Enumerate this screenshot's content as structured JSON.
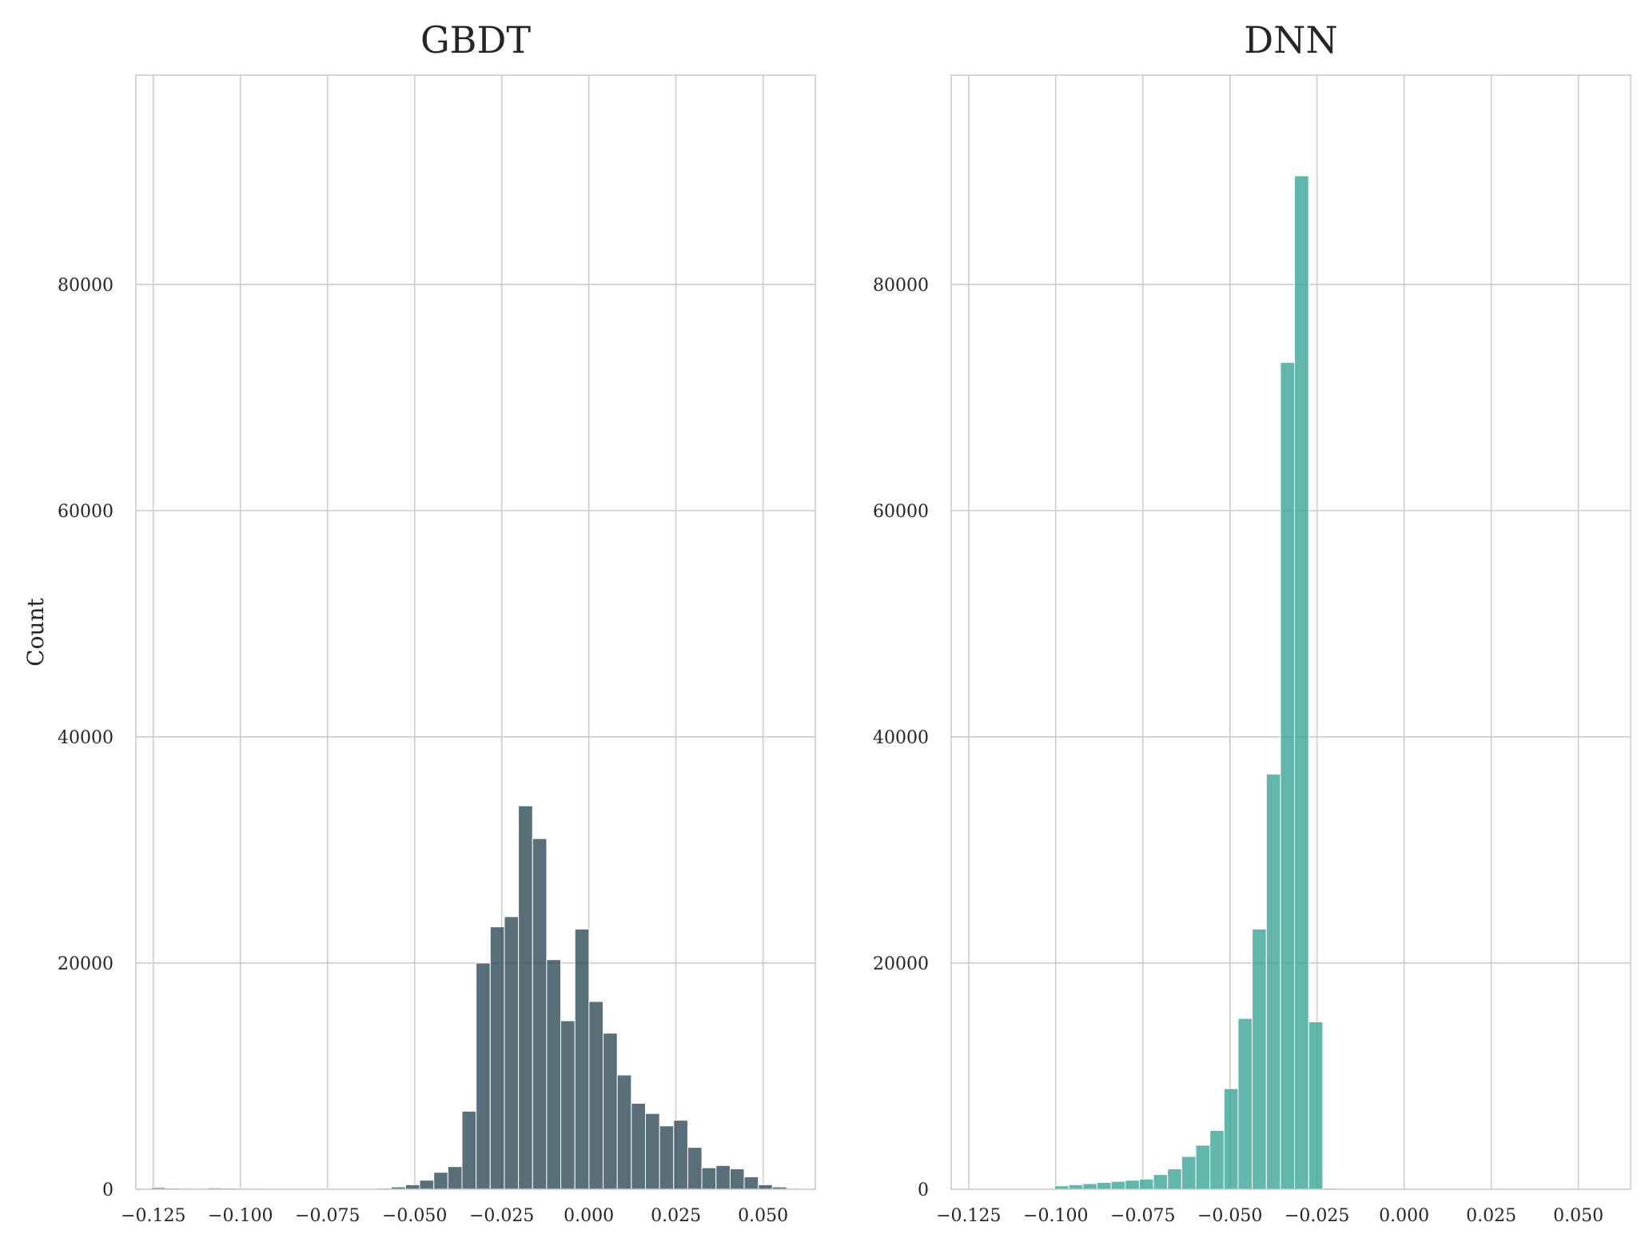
{
  "chart_data": [
    {
      "type": "bar",
      "title": "GBDT",
      "xlabel": "",
      "ylabel": "Count",
      "color": "#2f4b59",
      "xlim": [
        -0.13,
        0.065
      ],
      "ylim": [
        0,
        98500
      ],
      "xticks": [
        -0.125,
        -0.1,
        -0.075,
        -0.05,
        -0.025,
        0.0,
        0.025,
        0.05
      ],
      "xtick_labels": [
        "−0.125",
        "−0.100",
        "−0.075",
        "−0.050",
        "−0.025",
        "0.000",
        "0.025",
        "0.050"
      ],
      "yticks": [
        0,
        20000,
        40000,
        60000,
        80000
      ],
      "ytick_labels": [
        "0",
        "20000",
        "40000",
        "60000",
        "80000"
      ],
      "grid": true,
      "bin_start": -0.1255,
      "bin_width": 0.00405,
      "values": [
        150,
        100,
        80,
        80,
        120,
        100,
        80,
        80,
        60,
        60,
        60,
        60,
        60,
        60,
        60,
        60,
        100,
        200,
        400,
        800,
        1500,
        2000,
        6900,
        20000,
        23200,
        24100,
        33900,
        31000,
        20300,
        14900,
        23000,
        16600,
        13800,
        10100,
        7600,
        6700,
        5600,
        6100,
        3700,
        1900,
        2100,
        1800,
        1100,
        400,
        200,
        80,
        40,
        20
      ]
    },
    {
      "type": "bar",
      "title": "DNN",
      "xlabel": "",
      "ylabel": "",
      "color": "#3aa597",
      "xlim": [
        -0.13,
        0.065
      ],
      "ylim": [
        0,
        98500
      ],
      "xticks": [
        -0.125,
        -0.1,
        -0.075,
        -0.05,
        -0.025,
        0.0,
        0.025,
        0.05
      ],
      "xtick_labels": [
        "−0.125",
        "−0.100",
        "−0.075",
        "−0.050",
        "−0.025",
        "0.000",
        "0.025",
        "0.050"
      ],
      "yticks": [
        0,
        20000,
        40000,
        60000,
        80000
      ],
      "ytick_labels": [
        "0",
        "20000",
        "40000",
        "60000",
        "80000"
      ],
      "grid": true,
      "bin_start": -0.1003,
      "bin_width": 0.00405,
      "values": [
        300,
        400,
        500,
        600,
        700,
        800,
        900,
        1300,
        1800,
        2900,
        3900,
        5200,
        8900,
        15100,
        23000,
        36700,
        73100,
        89600,
        14800,
        100
      ]
    }
  ]
}
